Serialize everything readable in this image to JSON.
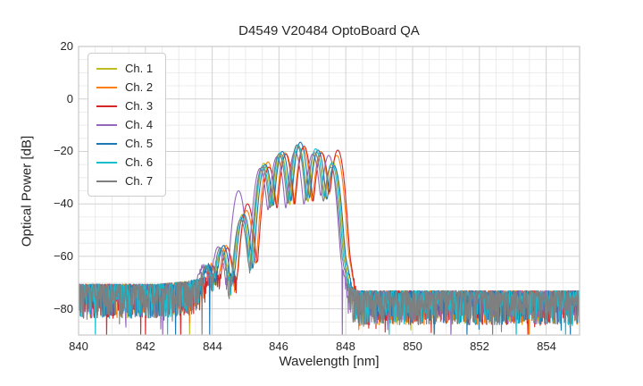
{
  "chart_data": {
    "type": "line",
    "title": "D4549 V20484 OptoBoard QA",
    "xlabel": "Wavelength [nm]",
    "ylabel": "Optical Power [dB]",
    "xlim": [
      840,
      855
    ],
    "ylim": [
      -90,
      20
    ],
    "xticks": [
      840,
      842,
      844,
      846,
      848,
      850,
      852,
      854
    ],
    "yticks": [
      20,
      0,
      -20,
      -40,
      -60,
      -80
    ],
    "grid": {
      "shown": true,
      "major_step_x_nm": 2,
      "minor_step_x_nm": 0.5,
      "major_step_y_db": 20,
      "minor_step_y_db": 5,
      "major_color": "#d2d2d2",
      "minor_color": "#e7e7e7",
      "spine_color": "#c9c9c9"
    },
    "legend": {
      "position": "upper-left"
    },
    "mode_centers_nm": [
      843.87,
      844.32,
      844.93,
      845.57,
      846.08,
      846.62,
      847.15,
      847.63,
      847.95
    ],
    "mode_sigma_nm": 0.082,
    "noise_envelope": [
      [
        840,
        -71.8
      ],
      [
        842.4,
        -71.8
      ],
      [
        843.2,
        -70.8
      ],
      [
        843.8,
        -69.3
      ],
      [
        847.7,
        -69.3
      ],
      [
        848.05,
        -72.5
      ],
      [
        848.35,
        -74.3
      ],
      [
        855,
        -74.3
      ]
    ],
    "noise_band_depth_db": 13,
    "sample_step_nm": 0.012,
    "series": [
      {
        "name": "Ch. 1",
        "color": "#bcbd22",
        "dx_nm": -0.02,
        "seed": 11,
        "mode_heights_db": [
          -65,
          -57,
          -44,
          -24.5,
          -21,
          -18.5,
          -20.5,
          -24,
          -62
        ]
      },
      {
        "name": "Ch. 2",
        "color": "#ff7f0e",
        "dx_nm": 0.1,
        "seed": 22,
        "mode_heights_db": [
          -64,
          -56,
          -42.5,
          -24,
          -20.5,
          -18.5,
          -20,
          -21.5,
          -61
        ]
      },
      {
        "name": "Ch. 3",
        "color": "#d62728",
        "dx_nm": 0.13,
        "seed": 33,
        "mode_heights_db": [
          -65,
          -57,
          -40,
          -26,
          -21,
          -18,
          -20.5,
          -19.5,
          -62
        ]
      },
      {
        "name": "Ch. 4",
        "color": "#9467bd",
        "dx_nm": -0.14,
        "seed": 44,
        "mode_heights_db": [
          -64.5,
          -56.5,
          -35,
          -26.5,
          -22,
          -20,
          -21,
          -21.5,
          -63
        ]
      },
      {
        "name": "Ch. 5",
        "color": "#1f77b4",
        "dx_nm": 0.02,
        "seed": 55,
        "mode_heights_db": [
          -64,
          -56,
          -44,
          -25,
          -20,
          -16.5,
          -19.5,
          -25.5,
          -62
        ]
      },
      {
        "name": "Ch. 6",
        "color": "#17becf",
        "dx_nm": -0.05,
        "seed": 66,
        "mode_heights_db": [
          -64.5,
          -57.5,
          -45,
          -25.5,
          -20.5,
          -17.5,
          -19,
          -24.5,
          -62
        ]
      },
      {
        "name": "Ch. 7",
        "color": "#7f7f7f",
        "dx_nm": -0.08,
        "seed": 77,
        "mode_heights_db": [
          -65,
          -57,
          -46,
          -26,
          -21,
          -17.5,
          -20.5,
          -26,
          -63
        ]
      }
    ],
    "deep_spikes": [
      {
        "series": 5,
        "x_nm": 840.5
      },
      {
        "series": 2,
        "x_nm": 840.84
      },
      {
        "series": 2,
        "x_nm": 842.0
      },
      {
        "series": 3,
        "x_nm": 842.52
      },
      {
        "series": 5,
        "x_nm": 842.66
      },
      {
        "series": 4,
        "x_nm": 842.9
      },
      {
        "series": 2,
        "x_nm": 843.06
      },
      {
        "series": 0,
        "x_nm": 843.32
      },
      {
        "series": 6,
        "x_nm": 843.7
      },
      {
        "series": 4,
        "x_nm": 843.93
      },
      {
        "series": 3,
        "x_nm": 847.9
      },
      {
        "series": 5,
        "x_nm": 849.3
      },
      {
        "series": 3,
        "x_nm": 851.15
      },
      {
        "series": 6,
        "x_nm": 852.4
      },
      {
        "series": 5,
        "x_nm": 853.1
      }
    ]
  }
}
